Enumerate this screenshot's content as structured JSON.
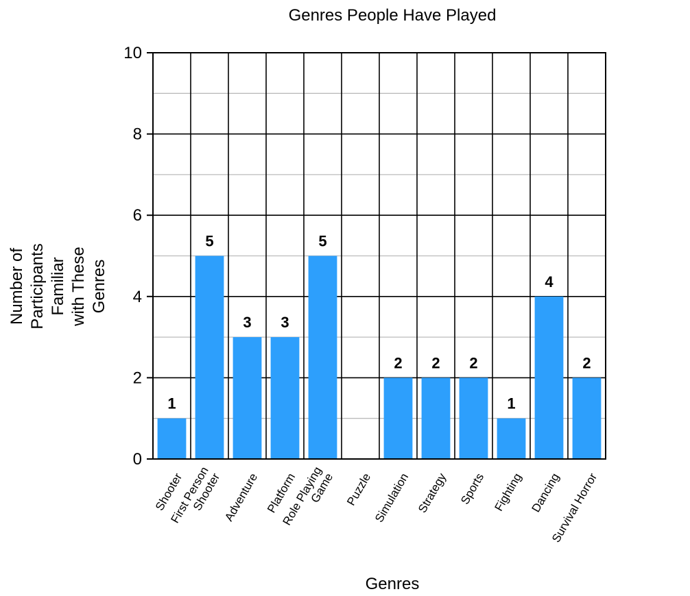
{
  "chart_data": {
    "type": "bar",
    "title": "Genres People Have Played",
    "xlabel": "Genres",
    "ylabel": "Number of Participants Familiar with These Genres",
    "ylabel_lines": [
      "Number of",
      "Participants",
      "Familiar",
      "with These",
      "Genres"
    ],
    "categories": [
      "Shooter",
      "First Person Shooter",
      "Adventure",
      "Platform",
      "Role Playing Game",
      "Puzzle",
      "Simulation",
      "Strategy",
      "Sports",
      "Fighting",
      "Dancing",
      "Survival Horror"
    ],
    "category_lines": [
      [
        "Shooter"
      ],
      [
        "First Person",
        "Shooter"
      ],
      [
        "Adventure"
      ],
      [
        "Platform"
      ],
      [
        "Role Playing",
        "Game"
      ],
      [
        "Puzzle"
      ],
      [
        "Simulation"
      ],
      [
        "Strategy"
      ],
      [
        "Sports"
      ],
      [
        "Fighting"
      ],
      [
        "Dancing"
      ],
      [
        "Survival Horror"
      ]
    ],
    "values": [
      1,
      5,
      3,
      3,
      5,
      0,
      2,
      2,
      2,
      1,
      4,
      2
    ],
    "data_labels": [
      "1",
      "5",
      "3",
      "3",
      "5",
      "",
      "2",
      "2",
      "2",
      "1",
      "4",
      "2"
    ],
    "ylim": [
      0,
      10
    ],
    "yticks": [
      0,
      2,
      4,
      6,
      8,
      10
    ],
    "grid": true,
    "bar_color": "#2d9ffc",
    "major_grid_color": "#000000",
    "minor_grid_color": "#bbbbbb"
  }
}
